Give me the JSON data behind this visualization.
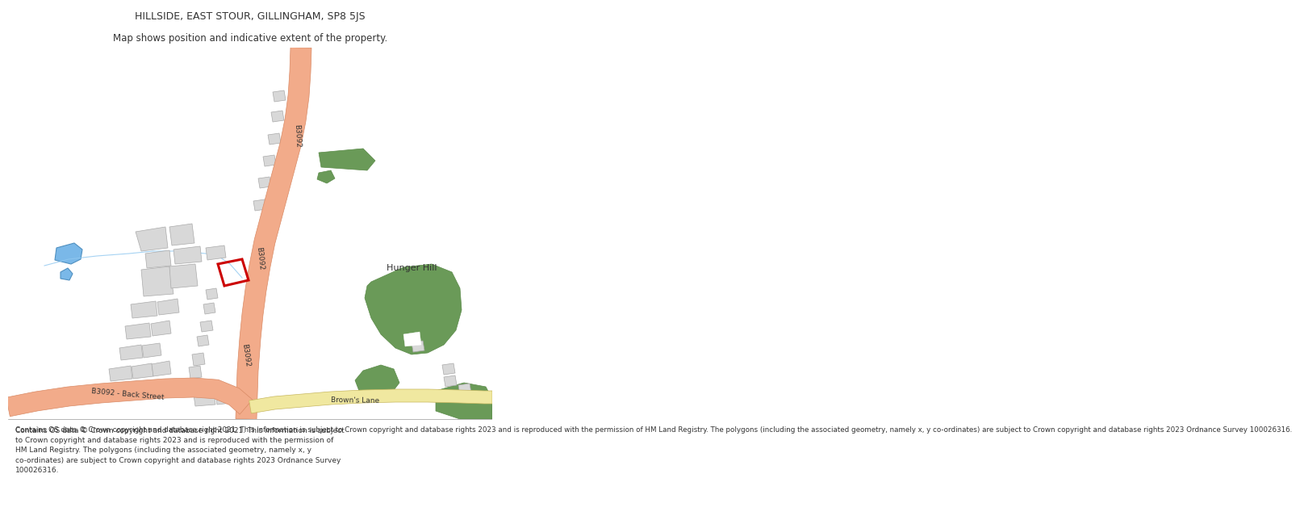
{
  "title": "HILLSIDE, EAST STOUR, GILLINGHAM, SP8 5JS",
  "subtitle": "Map shows position and indicative extent of the property.",
  "footer": "Contains OS data © Crown copyright and database right 2021. This information is subject to Crown copyright and database rights 2023 and is reproduced with the permission of HM Land Registry. The polygons (including the associated geometry, namely x, y co-ordinates) are subject to Crown copyright and database rights 2023 Ordnance Survey 100026316.",
  "road_main_color": "#f2ab8a",
  "road_main_edge": "#d98a65",
  "road_secondary_color": "#f0e8a0",
  "road_secondary_edge": "#c8b860",
  "green_color": "#6a9a58",
  "green_edge": "#5a8a48",
  "blue_color": "#7ab8e8",
  "blue_edge": "#5090c0",
  "building_color": "#d8d8d8",
  "building_edge": "#aaaaaa",
  "highlight_color": "#cc0000",
  "text_color": "#444444",
  "road_label_b3092_1": "B3092",
  "road_label_b3092_2": "B3092",
  "road_label_b3092_3": "B3092",
  "road_label_back": "B3092 - Back Street",
  "road_label_browns": "Brown's Lane",
  "place_label": "Hunger Hill"
}
